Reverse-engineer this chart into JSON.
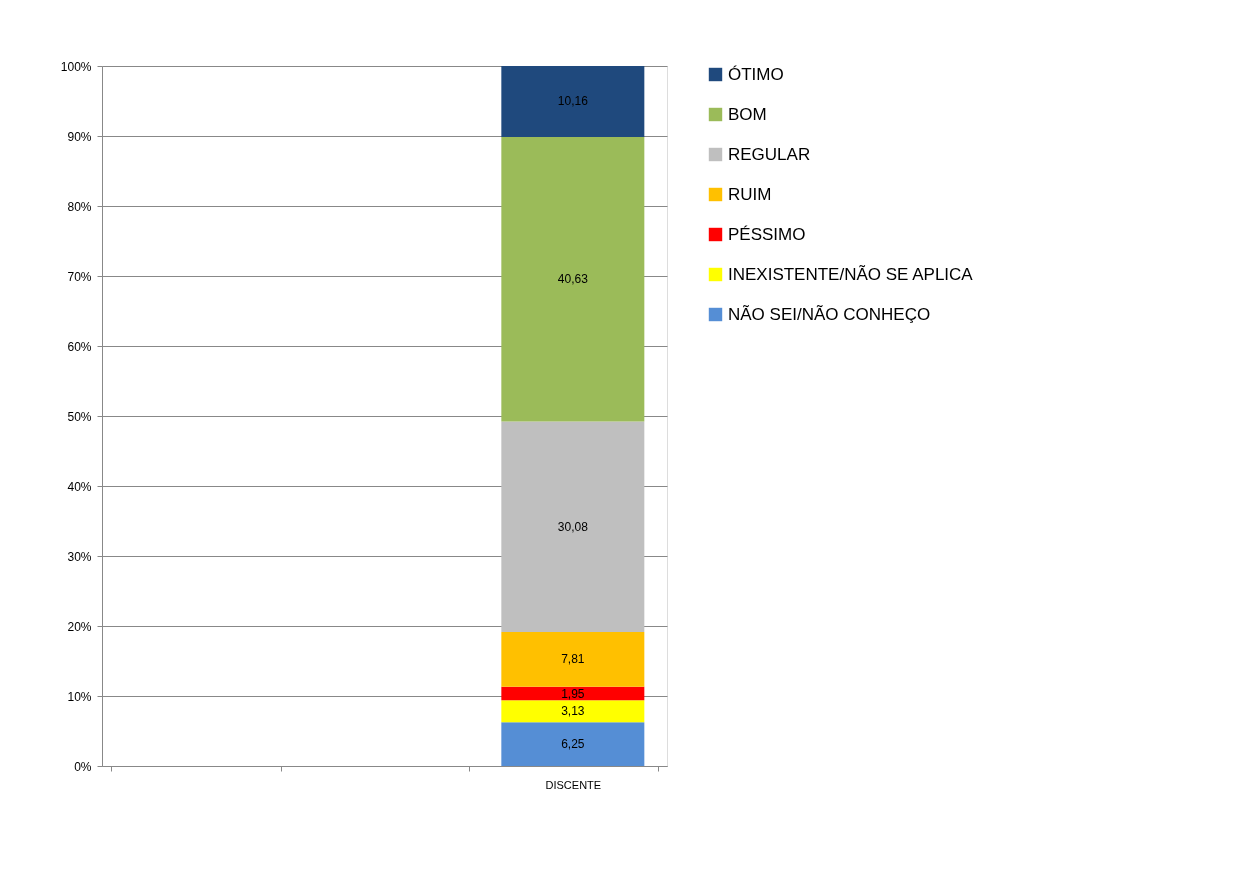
{
  "chart_data": {
    "type": "bar",
    "stacked": true,
    "categories": [
      null,
      null,
      "DISCENTE"
    ],
    "series": [
      {
        "name": "NÃO SEI/NÃO CONHEÇO",
        "color": "#558ed5",
        "values": [
          null,
          null,
          6.25
        ],
        "value_labels": [
          null,
          null,
          "6,25"
        ]
      },
      {
        "name": "INEXISTENTE/NÃO SE APLICA",
        "color": "#ffff00",
        "values": [
          null,
          null,
          3.13
        ],
        "value_labels": [
          null,
          null,
          "3,13"
        ]
      },
      {
        "name": "PÉSSIMO",
        "color": "#ff0000",
        "values": [
          null,
          null,
          1.95
        ],
        "value_labels": [
          null,
          null,
          "1,95"
        ]
      },
      {
        "name": "RUIM",
        "color": "#ffc000",
        "values": [
          null,
          null,
          7.81
        ],
        "value_labels": [
          null,
          null,
          "7,81"
        ]
      },
      {
        "name": "REGULAR",
        "color": "#bfbfbf",
        "values": [
          null,
          null,
          30.08
        ],
        "value_labels": [
          null,
          null,
          "30,08"
        ]
      },
      {
        "name": "BOM",
        "color": "#9bbb59",
        "values": [
          null,
          null,
          40.63
        ],
        "value_labels": [
          null,
          null,
          "40,63"
        ]
      },
      {
        "name": "ÓTIMO",
        "color": "#1f497d",
        "values": [
          null,
          null,
          10.16
        ],
        "value_labels": [
          null,
          null,
          "10,16"
        ]
      }
    ],
    "ylim": [
      0,
      100
    ],
    "yticks": [
      {
        "value": 0,
        "label": "0%"
      },
      {
        "value": 10,
        "label": "10%"
      },
      {
        "value": 20,
        "label": "20%"
      },
      {
        "value": 30,
        "label": "30%"
      },
      {
        "value": 40,
        "label": "40%"
      },
      {
        "value": 50,
        "label": "50%"
      },
      {
        "value": 60,
        "label": "60%"
      },
      {
        "value": 70,
        "label": "70%"
      },
      {
        "value": 80,
        "label": "80%"
      },
      {
        "value": 90,
        "label": "90%"
      },
      {
        "value": 100,
        "label": "100%"
      }
    ],
    "grid": "y",
    "legend": "right"
  }
}
